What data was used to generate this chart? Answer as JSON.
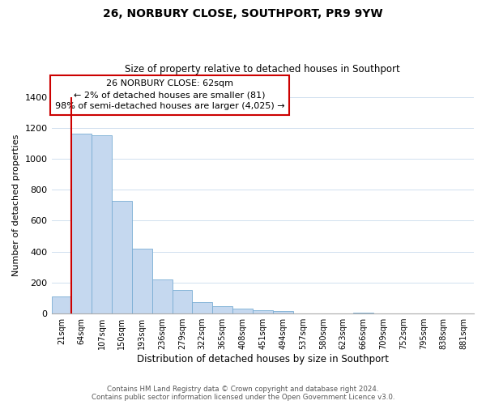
{
  "title": "26, NORBURY CLOSE, SOUTHPORT, PR9 9YW",
  "subtitle": "Size of property relative to detached houses in Southport",
  "xlabel": "Distribution of detached houses by size in Southport",
  "ylabel": "Number of detached properties",
  "bin_labels": [
    "21sqm",
    "64sqm",
    "107sqm",
    "150sqm",
    "193sqm",
    "236sqm",
    "279sqm",
    "322sqm",
    "365sqm",
    "408sqm",
    "451sqm",
    "494sqm",
    "537sqm",
    "580sqm",
    "623sqm",
    "666sqm",
    "709sqm",
    "752sqm",
    "795sqm",
    "838sqm",
    "881sqm"
  ],
  "bar_heights": [
    110,
    1160,
    1150,
    730,
    420,
    220,
    150,
    75,
    50,
    30,
    20,
    15,
    0,
    0,
    0,
    5,
    0,
    0,
    0,
    0,
    0
  ],
  "bar_color": "#c5d8ef",
  "bar_edge_color": "#7aadd4",
  "highlight_color": "#cc0000",
  "ylim": [
    0,
    1400
  ],
  "yticks": [
    0,
    200,
    400,
    600,
    800,
    1000,
    1200,
    1400
  ],
  "annotation_title": "26 NORBURY CLOSE: 62sqm",
  "annotation_line1": "← 2% of detached houses are smaller (81)",
  "annotation_line2": "98% of semi-detached houses are larger (4,025) →",
  "annotation_box_color": "#ffffff",
  "annotation_box_edge": "#cc0000",
  "footer_line1": "Contains HM Land Registry data © Crown copyright and database right 2024.",
  "footer_line2": "Contains public sector information licensed under the Open Government Licence v3.0.",
  "background_color": "#ffffff",
  "grid_color": "#d0e0ef",
  "fig_width": 6.0,
  "fig_height": 5.0
}
